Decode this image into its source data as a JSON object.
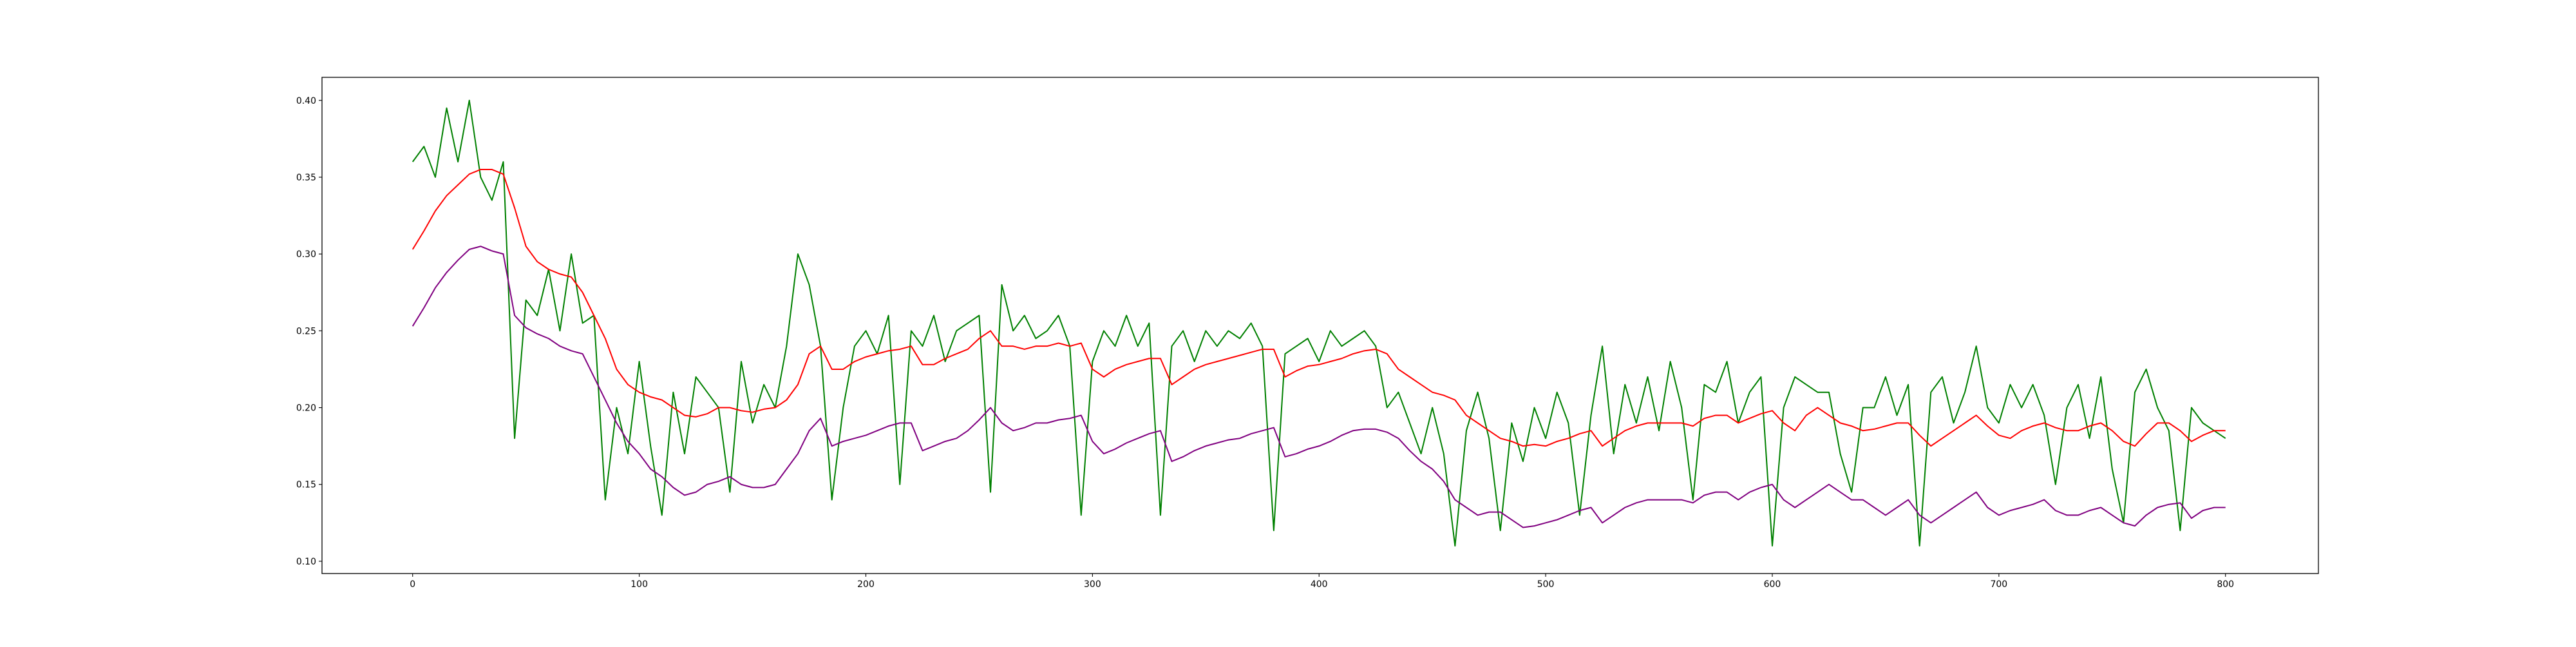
{
  "chart_data": {
    "type": "line",
    "x": [
      0,
      5,
      10,
      15,
      20,
      25,
      30,
      35,
      40,
      45,
      50,
      55,
      60,
      65,
      70,
      75,
      80,
      85,
      90,
      95,
      100,
      105,
      110,
      115,
      120,
      125,
      130,
      135,
      140,
      145,
      150,
      155,
      160,
      165,
      170,
      175,
      180,
      185,
      190,
      195,
      200,
      205,
      210,
      215,
      220,
      225,
      230,
      235,
      240,
      245,
      250,
      255,
      260,
      265,
      270,
      275,
      280,
      285,
      290,
      295,
      300,
      305,
      310,
      315,
      320,
      325,
      330,
      335,
      340,
      345,
      350,
      355,
      360,
      365,
      370,
      375,
      380,
      385,
      390,
      395,
      400,
      405,
      410,
      415,
      420,
      425,
      430,
      435,
      440,
      445,
      450,
      455,
      460,
      465,
      470,
      475,
      480,
      485,
      490,
      495,
      500,
      505,
      510,
      515,
      520,
      525,
      530,
      535,
      540,
      545,
      550,
      555,
      560,
      565,
      570,
      575,
      580,
      585,
      590,
      595,
      600,
      605,
      610,
      615,
      620,
      625,
      630,
      635,
      640,
      645,
      650,
      655,
      660,
      665,
      670,
      675,
      680,
      685,
      690,
      695,
      700,
      705,
      710,
      715,
      720,
      725,
      730,
      735,
      740,
      745,
      750,
      755,
      760,
      765,
      770,
      775,
      780,
      785,
      790,
      795,
      800
    ],
    "series": [
      {
        "color": "#008000",
        "values": [
          0.36,
          0.37,
          0.35,
          0.395,
          0.36,
          0.4,
          0.35,
          0.335,
          0.36,
          0.18,
          0.27,
          0.26,
          0.29,
          0.25,
          0.3,
          0.255,
          0.26,
          0.14,
          0.2,
          0.17,
          0.23,
          0.175,
          0.13,
          0.21,
          0.17,
          0.22,
          0.21,
          0.2,
          0.145,
          0.23,
          0.19,
          0.215,
          0.2,
          0.24,
          0.3,
          0.28,
          0.24,
          0.14,
          0.2,
          0.24,
          0.25,
          0.235,
          0.26,
          0.15,
          0.25,
          0.24,
          0.26,
          0.23,
          0.25,
          0.255,
          0.26,
          0.145,
          0.28,
          0.25,
          0.26,
          0.245,
          0.25,
          0.26,
          0.24,
          0.13,
          0.23,
          0.25,
          0.24,
          0.26,
          0.24,
          0.255,
          0.13,
          0.24,
          0.25,
          0.23,
          0.25,
          0.24,
          0.25,
          0.245,
          0.255,
          0.24,
          0.12,
          0.235,
          0.24,
          0.245,
          0.23,
          0.25,
          0.24,
          0.245,
          0.25,
          0.24,
          0.2,
          0.21,
          0.19,
          0.17,
          0.2,
          0.17,
          0.11,
          0.185,
          0.21,
          0.18,
          0.12,
          0.19,
          0.165,
          0.2,
          0.18,
          0.21,
          0.19,
          0.13,
          0.195,
          0.24,
          0.17,
          0.215,
          0.19,
          0.22,
          0.185,
          0.23,
          0.2,
          0.14,
          0.215,
          0.21,
          0.23,
          0.19,
          0.21,
          0.22,
          0.11,
          0.2,
          0.22,
          0.215,
          0.21,
          0.21,
          0.17,
          0.145,
          0.2,
          0.2,
          0.22,
          0.195,
          0.215,
          0.11,
          0.21,
          0.22,
          0.19,
          0.21,
          0.24,
          0.2,
          0.19,
          0.215,
          0.2,
          0.215,
          0.195,
          0.15,
          0.2,
          0.215,
          0.18,
          0.22,
          0.16,
          0.125,
          0.21,
          0.225,
          0.2,
          0.185,
          0.12,
          0.2,
          0.19,
          0.185,
          0.18
        ]
      },
      {
        "color": "#ff0000",
        "values": [
          0.303,
          0.315,
          0.328,
          0.338,
          0.345,
          0.352,
          0.355,
          0.355,
          0.352,
          0.33,
          0.305,
          0.295,
          0.29,
          0.287,
          0.285,
          0.275,
          0.26,
          0.245,
          0.225,
          0.215,
          0.21,
          0.207,
          0.205,
          0.2,
          0.195,
          0.194,
          0.196,
          0.2,
          0.2,
          0.198,
          0.197,
          0.199,
          0.2,
          0.205,
          0.215,
          0.235,
          0.24,
          0.225,
          0.225,
          0.23,
          0.233,
          0.235,
          0.237,
          0.238,
          0.24,
          0.228,
          0.228,
          0.232,
          0.235,
          0.238,
          0.245,
          0.25,
          0.24,
          0.24,
          0.238,
          0.24,
          0.24,
          0.242,
          0.24,
          0.242,
          0.225,
          0.22,
          0.225,
          0.228,
          0.23,
          0.232,
          0.232,
          0.215,
          0.22,
          0.225,
          0.228,
          0.23,
          0.232,
          0.234,
          0.236,
          0.238,
          0.238,
          0.22,
          0.224,
          0.227,
          0.228,
          0.23,
          0.232,
          0.235,
          0.237,
          0.238,
          0.235,
          0.225,
          0.22,
          0.215,
          0.21,
          0.208,
          0.205,
          0.195,
          0.19,
          0.185,
          0.18,
          0.178,
          0.175,
          0.176,
          0.175,
          0.178,
          0.18,
          0.183,
          0.185,
          0.175,
          0.18,
          0.185,
          0.188,
          0.19,
          0.19,
          0.19,
          0.19,
          0.188,
          0.193,
          0.195,
          0.195,
          0.19,
          0.193,
          0.196,
          0.198,
          0.19,
          0.185,
          0.195,
          0.2,
          0.195,
          0.19,
          0.188,
          0.185,
          0.186,
          0.188,
          0.19,
          0.19,
          0.182,
          0.175,
          0.18,
          0.185,
          0.19,
          0.195,
          0.188,
          0.182,
          0.18,
          0.185,
          0.188,
          0.19,
          0.187,
          0.185,
          0.185,
          0.188,
          0.19,
          0.185,
          0.178,
          0.175,
          0.183,
          0.19,
          0.19,
          0.185,
          0.178,
          0.182,
          0.185,
          0.185
        ]
      },
      {
        "color": "#800080",
        "values": [
          0.253,
          0.265,
          0.278,
          0.288,
          0.296,
          0.303,
          0.305,
          0.302,
          0.3,
          0.26,
          0.252,
          0.248,
          0.245,
          0.24,
          0.237,
          0.235,
          0.22,
          0.205,
          0.19,
          0.178,
          0.17,
          0.16,
          0.155,
          0.148,
          0.143,
          0.145,
          0.15,
          0.152,
          0.155,
          0.15,
          0.148,
          0.148,
          0.15,
          0.16,
          0.17,
          0.185,
          0.193,
          0.175,
          0.178,
          0.18,
          0.182,
          0.185,
          0.188,
          0.19,
          0.19,
          0.172,
          0.175,
          0.178,
          0.18,
          0.185,
          0.192,
          0.2,
          0.19,
          0.185,
          0.187,
          0.19,
          0.19,
          0.192,
          0.193,
          0.195,
          0.178,
          0.17,
          0.173,
          0.177,
          0.18,
          0.183,
          0.185,
          0.165,
          0.168,
          0.172,
          0.175,
          0.177,
          0.179,
          0.18,
          0.183,
          0.185,
          0.187,
          0.168,
          0.17,
          0.173,
          0.175,
          0.178,
          0.182,
          0.185,
          0.186,
          0.186,
          0.184,
          0.18,
          0.172,
          0.165,
          0.16,
          0.152,
          0.14,
          0.135,
          0.13,
          0.132,
          0.132,
          0.127,
          0.122,
          0.123,
          0.125,
          0.127,
          0.13,
          0.133,
          0.135,
          0.125,
          0.13,
          0.135,
          0.138,
          0.14,
          0.14,
          0.14,
          0.14,
          0.138,
          0.143,
          0.145,
          0.145,
          0.14,
          0.145,
          0.148,
          0.15,
          0.14,
          0.135,
          0.14,
          0.145,
          0.15,
          0.145,
          0.14,
          0.14,
          0.135,
          0.13,
          0.135,
          0.14,
          0.13,
          0.125,
          0.13,
          0.135,
          0.14,
          0.145,
          0.135,
          0.13,
          0.133,
          0.135,
          0.137,
          0.14,
          0.133,
          0.13,
          0.13,
          0.133,
          0.135,
          0.13,
          0.125,
          0.123,
          0.13,
          0.135,
          0.137,
          0.138,
          0.128,
          0.133,
          0.135,
          0.135
        ]
      }
    ],
    "xlim": [
      -40,
      841
    ],
    "ylim": [
      0.092,
      0.415
    ],
    "xticks": [
      0,
      100,
      200,
      300,
      400,
      500,
      600,
      700,
      800
    ],
    "yticks": [
      {
        "value": 0.1,
        "label": "0.10"
      },
      0.15,
      {
        "value": 0.2,
        "label": "0.20"
      },
      0.25,
      {
        "value": 0.3,
        "label": "0.30"
      },
      0.35,
      {
        "value": 0.4,
        "label": "0.40"
      }
    ]
  }
}
